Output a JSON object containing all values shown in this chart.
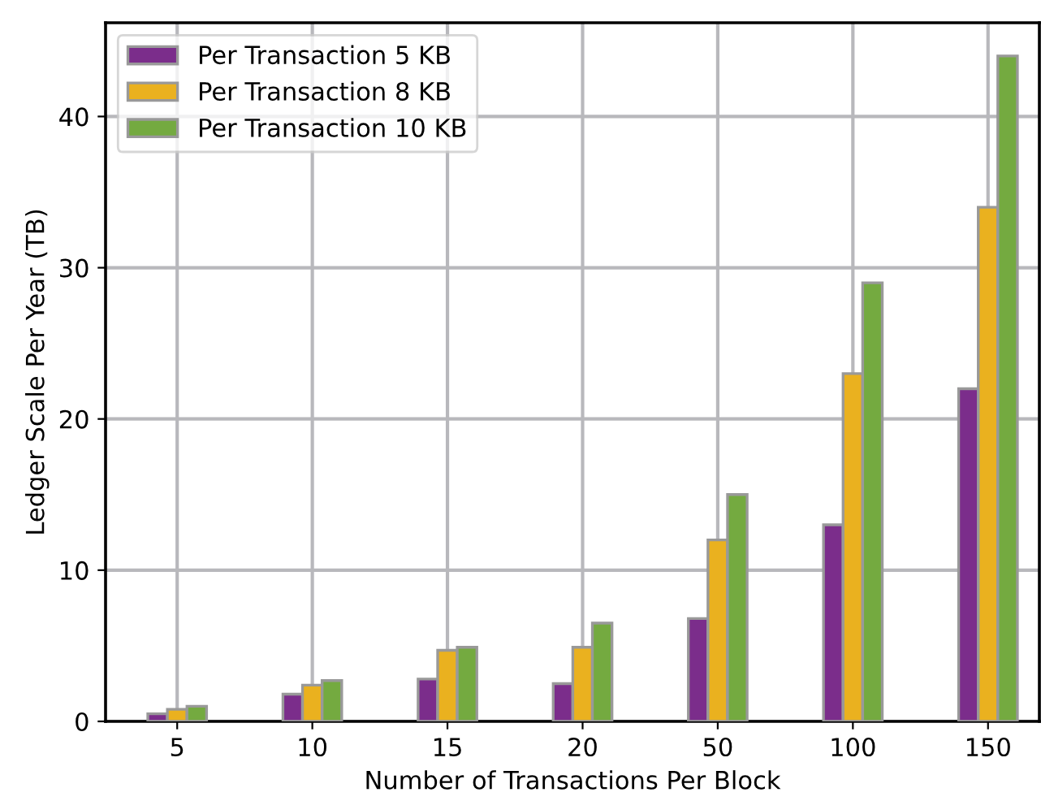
{
  "chart_data": {
    "type": "bar",
    "xlabel": "Number of Transactions Per Block",
    "ylabel": "Ledger Scale Per Year (TB)",
    "categories": [
      "5",
      "10",
      "15",
      "20",
      "50",
      "100",
      "150"
    ],
    "series": [
      {
        "name": "Per Transaction 5 KB",
        "color": "#7b2d8b",
        "values": [
          0.5,
          1.8,
          2.8,
          2.5,
          6.8,
          13,
          22
        ]
      },
      {
        "name": "Per Transaction 8 KB",
        "color": "#eab11f",
        "values": [
          0.8,
          2.4,
          4.7,
          4.9,
          12,
          23,
          34
        ]
      },
      {
        "name": "Per Transaction 10 KB",
        "color": "#74aa40",
        "values": [
          1.0,
          2.7,
          4.9,
          6.5,
          15,
          29,
          44
        ]
      }
    ],
    "ylim": [
      0,
      46.2
    ],
    "yticks": [
      0,
      10,
      20,
      30,
      40
    ],
    "grid": true,
    "legend": "top left"
  }
}
